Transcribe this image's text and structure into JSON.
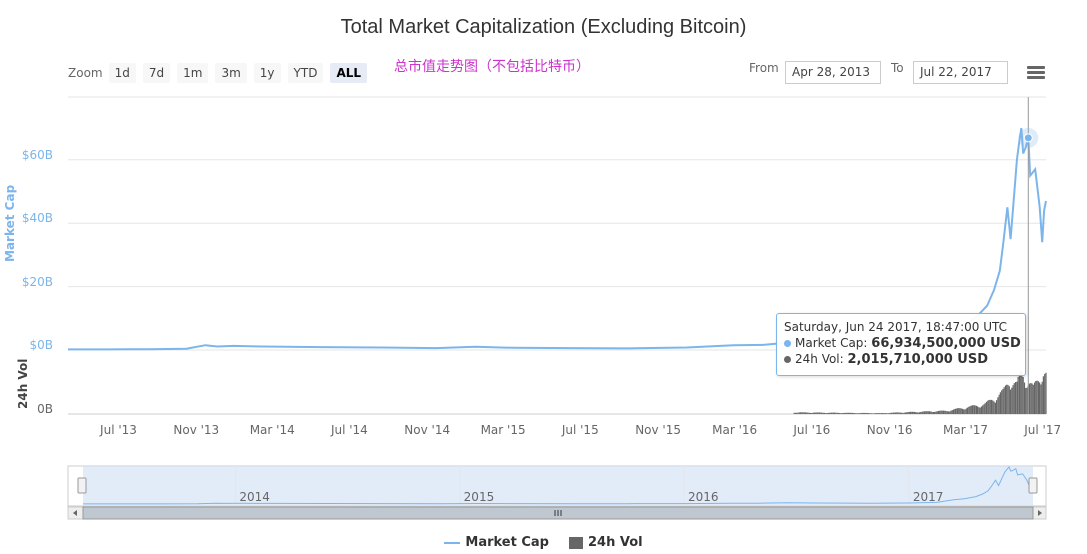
{
  "chart_data": {
    "type": "line",
    "title": "Total Market Capitalization (Excluding Bitcoin)",
    "annotation": "总市值走势图（不包括比特币）",
    "x_ticks": [
      "Jul '13",
      "Nov '13",
      "Mar '14",
      "Jul '14",
      "Nov '14",
      "Mar '15",
      "Jul '15",
      "Nov '15",
      "Mar '16",
      "Jul '16",
      "Nov '16",
      "Mar '17",
      "Jul '17"
    ],
    "y_ticks": [
      "$60B",
      "$40B",
      "$20B",
      "$0B"
    ],
    "y_tick_values": [
      60,
      40,
      20,
      0
    ],
    "ylabel": "Market Cap",
    "ylim": [
      0,
      70
    ],
    "vol_axis_label": "24h Vol",
    "vol_ticks": [
      "0B"
    ],
    "xlim": [
      "2013-04-28",
      "2017-07-22"
    ],
    "series": [
      {
        "name": "Market Cap",
        "color": "#7cb5ec",
        "unit": "billion USD",
        "points": [
          [
            "2013-04-28",
            0.2
          ],
          [
            "2013-07-01",
            0.2
          ],
          [
            "2013-09-01",
            0.25
          ],
          [
            "2013-11-01",
            0.4
          ],
          [
            "2013-12-01",
            1.5
          ],
          [
            "2013-12-20",
            1.1
          ],
          [
            "2014-01-15",
            1.3
          ],
          [
            "2014-03-01",
            1.1
          ],
          [
            "2014-06-01",
            0.9
          ],
          [
            "2014-09-01",
            0.8
          ],
          [
            "2014-12-01",
            0.6
          ],
          [
            "2015-02-01",
            1.0
          ],
          [
            "2015-04-01",
            0.7
          ],
          [
            "2015-07-01",
            0.6
          ],
          [
            "2015-10-01",
            0.5
          ],
          [
            "2016-01-01",
            0.8
          ],
          [
            "2016-03-15",
            1.5
          ],
          [
            "2016-05-01",
            1.6
          ],
          [
            "2016-06-18",
            2.5
          ],
          [
            "2016-08-01",
            1.8
          ],
          [
            "2016-11-01",
            1.6
          ],
          [
            "2017-01-01",
            1.9
          ],
          [
            "2017-02-15",
            3.0
          ],
          [
            "2017-03-15",
            8.0
          ],
          [
            "2017-04-01",
            10.0
          ],
          [
            "2017-04-20",
            14.0
          ],
          [
            "2017-05-01",
            19.0
          ],
          [
            "2017-05-10",
            25.0
          ],
          [
            "2017-05-15",
            33.0
          ],
          [
            "2017-05-22",
            45.0
          ],
          [
            "2017-05-27",
            35.0
          ],
          [
            "2017-06-02",
            50.0
          ],
          [
            "2017-06-06",
            60.0
          ],
          [
            "2017-06-10",
            66.0
          ],
          [
            "2017-06-13",
            70.0
          ],
          [
            "2017-06-16",
            62.0
          ],
          [
            "2017-06-20",
            64.0
          ],
          [
            "2017-06-24",
            66.9
          ],
          [
            "2017-06-27",
            55.0
          ],
          [
            "2017-07-01",
            56.0
          ],
          [
            "2017-07-05",
            57.0
          ],
          [
            "2017-07-08",
            52.0
          ],
          [
            "2017-07-12",
            45.0
          ],
          [
            "2017-07-16",
            34.0
          ],
          [
            "2017-07-19",
            44.0
          ],
          [
            "2017-07-22",
            47.0
          ]
        ]
      },
      {
        "name": "24h Vol",
        "color": "#666666",
        "unit": "billion USD",
        "points": [
          [
            "2016-06-18",
            0.1
          ],
          [
            "2016-11-01",
            0.05
          ],
          [
            "2017-02-15",
            0.2
          ],
          [
            "2017-03-15",
            0.4
          ],
          [
            "2017-04-15",
            0.6
          ],
          [
            "2017-05-01",
            1.0
          ],
          [
            "2017-05-15",
            1.4
          ],
          [
            "2017-05-25",
            2.2
          ],
          [
            "2017-06-05",
            1.8
          ],
          [
            "2017-06-12",
            2.6
          ],
          [
            "2017-06-24",
            2.0
          ],
          [
            "2017-07-01",
            1.6
          ],
          [
            "2017-07-10",
            2.2
          ],
          [
            "2017-07-16",
            2.8
          ],
          [
            "2017-07-22",
            2.4
          ]
        ]
      }
    ],
    "vol_max": 3.5,
    "grid": true,
    "legend": "bottom-center",
    "navigator_labels": [
      "2014",
      "2015",
      "2016",
      "2017"
    ]
  },
  "toolbar": {
    "zoom_label": "Zoom",
    "buttons": [
      "1d",
      "7d",
      "1m",
      "3m",
      "1y",
      "YTD",
      "ALL"
    ],
    "active": "ALL",
    "from_label": "From",
    "from_value": "Apr 28, 2013",
    "to_label": "To",
    "to_value": "Jul 22, 2017"
  },
  "tooltip": {
    "header": "Saturday, Jun 24 2017, 18:47:00 UTC",
    "mc_label": "Market Cap:",
    "mc_value": "66,934,500,000 USD",
    "vol_label": "24h Vol:",
    "vol_value": "2,015,710,000 USD",
    "date": "2017-06-24",
    "mc_billions": 66.9
  },
  "legend": {
    "market_cap": "Market Cap",
    "vol": "24h Vol"
  },
  "colors": {
    "market_cap": "#7cb5ec",
    "vol": "#666666",
    "annotation": "#cc33cc",
    "navigator_mask": "#d6e4f5"
  }
}
